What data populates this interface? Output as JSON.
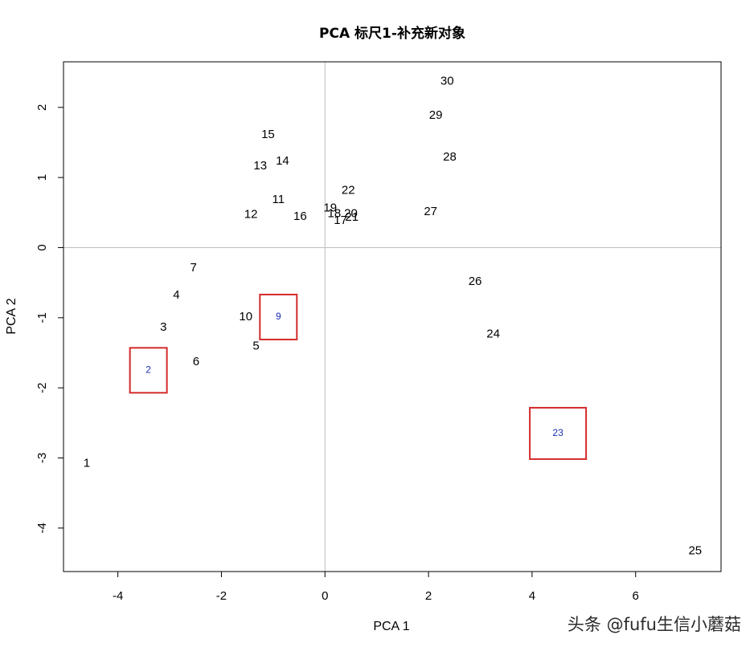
{
  "chart_data": {
    "type": "scatter",
    "title": "PCA 标尺1-补充新对象",
    "xlabel": "PCA 1",
    "ylabel": "PCA 2",
    "xlim": [
      -5.05,
      7.65
    ],
    "ylim": [
      -4.62,
      2.65
    ],
    "xticks": [
      -4,
      -2,
      0,
      2,
      4,
      6
    ],
    "yticks": [
      -4,
      -3,
      -2,
      -1,
      0,
      1,
      2
    ],
    "reference_lines": {
      "x": 0,
      "y": 0,
      "color": "#bebebe"
    },
    "points": [
      {
        "label": "1",
        "x": -4.6,
        "y": -3.08
      },
      {
        "label": "3",
        "x": -3.12,
        "y": -1.14
      },
      {
        "label": "4",
        "x": -2.87,
        "y": -0.68
      },
      {
        "label": "5",
        "x": -1.33,
        "y": -1.41
      },
      {
        "label": "6",
        "x": -2.49,
        "y": -1.63
      },
      {
        "label": "7",
        "x": -2.54,
        "y": -0.29
      },
      {
        "label": "10",
        "x": -1.53,
        "y": -0.99
      },
      {
        "label": "11",
        "x": -0.9,
        "y": 0.68
      },
      {
        "label": "12",
        "x": -1.43,
        "y": 0.47
      },
      {
        "label": "13",
        "x": -1.25,
        "y": 1.16
      },
      {
        "label": "14",
        "x": -0.82,
        "y": 1.23
      },
      {
        "label": "15",
        "x": -1.1,
        "y": 1.61
      },
      {
        "label": "16",
        "x": -0.48,
        "y": 0.44
      },
      {
        "label": "17",
        "x": 0.3,
        "y": 0.38
      },
      {
        "label": "18",
        "x": 0.18,
        "y": 0.48
      },
      {
        "label": "19",
        "x": 0.1,
        "y": 0.56
      },
      {
        "label": "20",
        "x": 0.5,
        "y": 0.48
      },
      {
        "label": "21",
        "x": 0.52,
        "y": 0.43
      },
      {
        "label": "22",
        "x": 0.45,
        "y": 0.81
      },
      {
        "label": "24",
        "x": 3.25,
        "y": -1.24
      },
      {
        "label": "25",
        "x": 7.15,
        "y": -4.33
      },
      {
        "label": "26",
        "x": 2.9,
        "y": -0.49
      },
      {
        "label": "27",
        "x": 2.04,
        "y": 0.51
      },
      {
        "label": "28",
        "x": 2.41,
        "y": 1.29
      },
      {
        "label": "29",
        "x": 2.14,
        "y": 1.88
      },
      {
        "label": "30",
        "x": 2.36,
        "y": 2.37
      }
    ],
    "supplementary_points": [
      {
        "label": "2",
        "x": -3.41,
        "y": -1.75
      },
      {
        "label": "9",
        "x": -0.9,
        "y": -0.99
      },
      {
        "label": "23",
        "x": 4.5,
        "y": -2.65
      }
    ],
    "highlight_color": "#d42a2a"
  },
  "watermark": "头条 @fufu生信小蘑菇"
}
